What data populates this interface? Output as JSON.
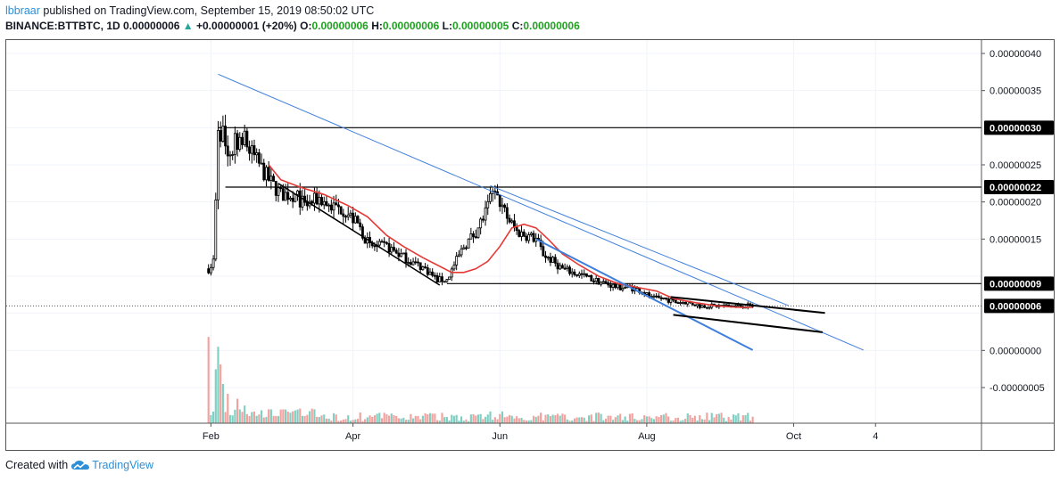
{
  "header": {
    "author": "lbbraar",
    "published_text": " published on TradingView.com, September 15, 2019 08:50:02 UTC",
    "symbol": "BINANCE:BTTBTC, 1D",
    "price": "0.00000006",
    "change_icon": "triangle-up-icon",
    "change": "+0.00000001 (+20%)",
    "o_label": "O:",
    "o_value": "0.00000006",
    "h_label": "H:",
    "h_value": "0.00000006",
    "l_label": "L:",
    "l_value": "0.00000005",
    "c_label": "C:",
    "c_value": "0.00000006"
  },
  "footer": {
    "created_with": "Created with",
    "logo_icon": "tradingview-cloud-icon",
    "brand": "TradingView"
  },
  "colors": {
    "up_candle": "#000000",
    "down_candle": "#000000",
    "ma_line": "#e53935",
    "trend_line": "#3f7fdc",
    "volume_up": "#7fcfc2",
    "volume_down": "#f2a29e",
    "label_bg": "#000000",
    "label_text": "#ffffff"
  },
  "chart_data": {
    "type": "candlestick",
    "xaxis_ticks": [
      {
        "date": "2019-02-01",
        "label": "Feb"
      },
      {
        "date": "2019-04-01",
        "label": "Apr"
      },
      {
        "date": "2019-06-01",
        "label": "Jun"
      },
      {
        "date": "2019-08-01",
        "label": "Aug"
      },
      {
        "date": "2019-10-01",
        "label": "Oct"
      },
      {
        "date": "2019-11-04",
        "label": "4"
      }
    ],
    "xlim": [
      "2018-11-08",
      "2019-12-18"
    ],
    "ylim": [
      -9.8e-08,
      4.18e-07
    ],
    "yaxis_ticks": [
      {
        "value": 4e-07,
        "label": "0.00000040"
      },
      {
        "value": 3.5e-07,
        "label": "0.00000035"
      },
      {
        "value": 2.5e-07,
        "label": "0.00000025"
      },
      {
        "value": 2e-07,
        "label": "0.00000020"
      },
      {
        "value": 1.5e-07,
        "label": "0.00000015"
      },
      {
        "value": 0.0,
        "label": "0.00000000"
      },
      {
        "value": -5e-08,
        "label": "-0.00000005"
      }
    ],
    "price_labels": [
      {
        "value": 3e-07,
        "label": "0.00000030"
      },
      {
        "value": 2.2e-07,
        "label": "0.00000022"
      },
      {
        "value": 9e-08,
        "label": "0.00000009"
      },
      {
        "value": 6e-08,
        "label": "0.00000006"
      }
    ],
    "horizontal_lines": [
      {
        "value": 3e-07,
        "from": "2019-02-04"
      },
      {
        "value": 2.2e-07,
        "from": "2019-02-07"
      },
      {
        "value": 9e-08,
        "from": "2019-05-10"
      }
    ],
    "trend_lines": [
      {
        "color": "trend",
        "width": 1,
        "from": [
          "2019-02-04",
          3.72e-07
        ],
        "to": [
          "2019-10-30",
          5e-10
        ]
      },
      {
        "color": "trend",
        "width": 1,
        "from": [
          "2019-05-28",
          2.22e-07
        ],
        "to": [
          "2019-09-29",
          6.02e-08
        ]
      },
      {
        "color": "trend",
        "width": 2,
        "from": [
          "2019-06-16",
          1.5e-07
        ],
        "to": [
          "2019-09-14",
          5e-10
        ]
      },
      {
        "color": "black",
        "width": 1.5,
        "from": [
          "2019-02-29",
          2.25e-07
        ],
        "to": [
          "2019-05-07",
          8.8e-08
        ]
      },
      {
        "color": "black",
        "width": 2,
        "from": [
          "2019-08-11",
          7.2e-08
        ],
        "to": [
          "2019-10-14",
          5.05e-08
        ]
      },
      {
        "color": "black",
        "width": 2,
        "from": [
          "2019-08-12",
          4.8e-08
        ],
        "to": [
          "2019-10-13",
          2.45e-08
        ]
      }
    ],
    "price_path": [
      [
        "2019-01-31",
        1.1e-07
      ],
      [
        "2019-02-02",
        1.2e-07
      ],
      [
        "2019-02-03",
        2e-07
      ],
      [
        "2019-02-04",
        3e-07
      ],
      [
        "2019-02-06",
        2.9e-07
      ],
      [
        "2019-02-08",
        2.6e-07
      ],
      [
        "2019-02-11",
        2.8e-07
      ],
      [
        "2019-02-14",
        2.9e-07
      ],
      [
        "2019-02-17",
        2.7e-07
      ],
      [
        "2019-02-21",
        2.5e-07
      ],
      [
        "2019-02-25",
        2.3e-07
      ],
      [
        "2019-03-02",
        2.1e-07
      ],
      [
        "2019-03-08",
        2.1e-07
      ],
      [
        "2019-03-12",
        1.95e-07
      ],
      [
        "2019-03-18",
        2.05e-07
      ],
      [
        "2019-03-22",
        1.95e-07
      ],
      [
        "2019-03-28",
        1.9e-07
      ],
      [
        "2019-04-03",
        1.7e-07
      ],
      [
        "2019-04-08",
        1.4e-07
      ],
      [
        "2019-04-15",
        1.4e-07
      ],
      [
        "2019-04-20",
        1.3e-07
      ],
      [
        "2019-04-25",
        1.2e-07
      ],
      [
        "2019-05-01",
        1.1e-07
      ],
      [
        "2019-05-06",
        9.5e-08
      ],
      [
        "2019-05-10",
        9.5e-08
      ],
      [
        "2019-05-13",
        1.15e-07
      ],
      [
        "2019-05-17",
        1.4e-07
      ],
      [
        "2019-05-22",
        1.6e-07
      ],
      [
        "2019-05-26",
        1.85e-07
      ],
      [
        "2019-05-29",
        2.1e-07
      ],
      [
        "2019-06-01",
        2e-07
      ],
      [
        "2019-06-04",
        1.8e-07
      ],
      [
        "2019-06-08",
        1.6e-07
      ],
      [
        "2019-06-12",
        1.55e-07
      ],
      [
        "2019-06-16",
        1.5e-07
      ],
      [
        "2019-06-19",
        1.3e-07
      ],
      [
        "2019-06-23",
        1.2e-07
      ],
      [
        "2019-06-27",
        1.1e-07
      ],
      [
        "2019-07-01",
        1.05e-07
      ],
      [
        "2019-07-06",
        1e-07
      ],
      [
        "2019-07-10",
        9.5e-08
      ],
      [
        "2019-07-15",
        9e-08
      ],
      [
        "2019-07-20",
        8.5e-08
      ],
      [
        "2019-07-25",
        8.5e-08
      ],
      [
        "2019-07-30",
        8e-08
      ],
      [
        "2019-08-03",
        7e-08
      ],
      [
        "2019-08-08",
        7e-08
      ],
      [
        "2019-08-13",
        6.5e-08
      ],
      [
        "2019-08-18",
        6.5e-08
      ],
      [
        "2019-08-23",
        6e-08
      ],
      [
        "2019-08-28",
        6e-08
      ],
      [
        "2019-09-03",
        6e-08
      ],
      [
        "2019-09-08",
        6e-08
      ],
      [
        "2019-09-14",
        6e-08
      ]
    ],
    "moving_average": [
      [
        "2019-02-25",
        2.5e-07
      ],
      [
        "2019-03-02",
        2.3e-07
      ],
      [
        "2019-03-10",
        2.2e-07
      ],
      [
        "2019-03-20",
        2.1e-07
      ],
      [
        "2019-03-30",
        1.95e-07
      ],
      [
        "2019-04-07",
        1.8e-07
      ],
      [
        "2019-04-15",
        1.55e-07
      ],
      [
        "2019-04-22",
        1.4e-07
      ],
      [
        "2019-04-30",
        1.25e-07
      ],
      [
        "2019-05-06",
        1.15e-07
      ],
      [
        "2019-05-12",
        1.05e-07
      ],
      [
        "2019-05-17",
        1.05e-07
      ],
      [
        "2019-05-22",
        1.1e-07
      ],
      [
        "2019-05-27",
        1.2e-07
      ],
      [
        "2019-06-01",
        1.4e-07
      ],
      [
        "2019-06-06",
        1.65e-07
      ],
      [
        "2019-06-11",
        1.7e-07
      ],
      [
        "2019-06-16",
        1.65e-07
      ],
      [
        "2019-06-21",
        1.5e-07
      ],
      [
        "2019-06-27",
        1.3e-07
      ],
      [
        "2019-07-04",
        1.15e-07
      ],
      [
        "2019-07-12",
        1e-07
      ],
      [
        "2019-07-20",
        9e-08
      ],
      [
        "2019-07-28",
        8.5e-08
      ],
      [
        "2019-08-05",
        8e-08
      ],
      [
        "2019-08-12",
        7e-08
      ],
      [
        "2019-08-20",
        6.5e-08
      ],
      [
        "2019-08-30",
        6e-08
      ],
      [
        "2019-09-08",
        5.8e-08
      ],
      [
        "2019-09-14",
        5.8e-08
      ]
    ],
    "volume_spikes": [
      {
        "date": "2019-01-31",
        "level": 0.88
      },
      {
        "date": "2019-02-03",
        "level": 0.55
      },
      {
        "date": "2019-02-04",
        "level": 0.78
      },
      {
        "date": "2019-02-05",
        "level": 0.6
      },
      {
        "date": "2019-02-06",
        "level": 0.4
      },
      {
        "date": "2019-02-08",
        "level": 0.3
      },
      {
        "date": "2019-02-12",
        "level": 0.25
      },
      {
        "date": "2019-02-15",
        "level": 0.18
      },
      {
        "date": "2019-03-08",
        "level": 0.13
      },
      {
        "date": "2019-05-28",
        "level": 0.12
      },
      {
        "date": "2019-06-02",
        "level": 0.12
      }
    ],
    "generator_seed": 7
  }
}
